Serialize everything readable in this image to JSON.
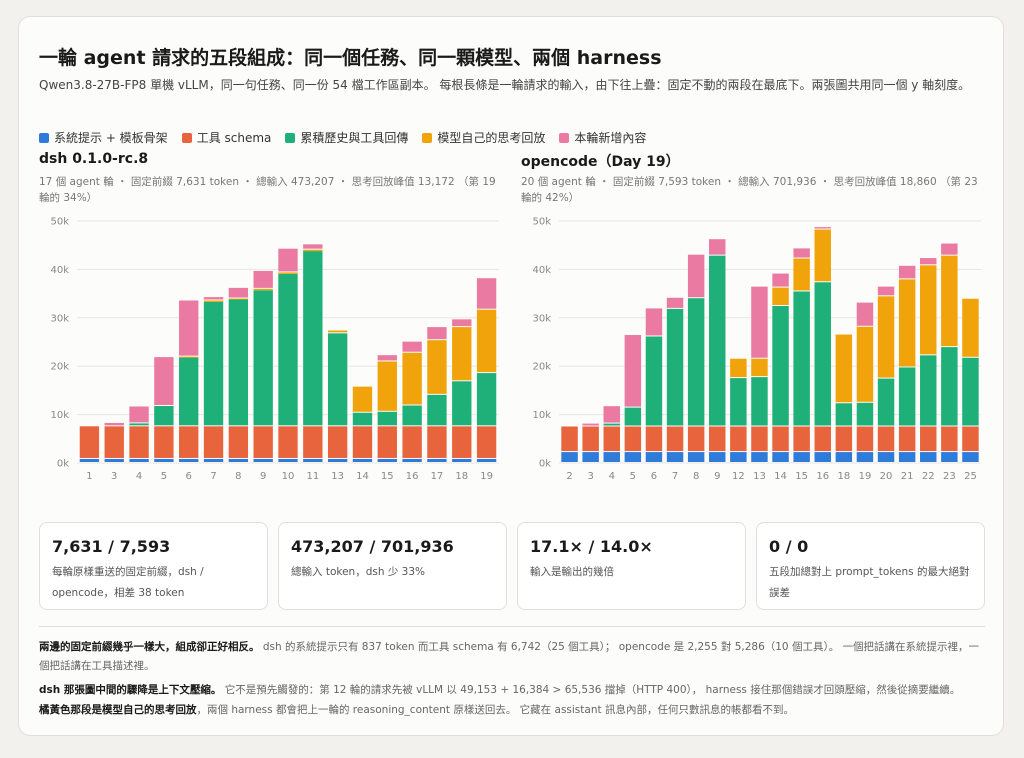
{
  "title": "一輪 agent 請求的五段組成：同一個任務、同一顆模型、兩個 harness",
  "subtitle": "Qwen3.8-27B-FP8 單機 vLLM，同一句任務、同一份 54 檔工作區副本。 每根長條是一輪請求的輸入，由下往上疊：固定不動的兩段在最底下。兩張圖共用同一個 y 軸刻度。",
  "legend": [
    {
      "label": "系統提示 + 模板骨架",
      "color": "#2f7bd9"
    },
    {
      "label": "工具 schema",
      "color": "#e8643c"
    },
    {
      "label": "累積歷史與工具回傳",
      "color": "#1fb07a"
    },
    {
      "label": "模型自己的思考回放",
      "color": "#f0a30a"
    },
    {
      "label": "本輪新增內容",
      "color": "#ea7aa2"
    }
  ],
  "chart_data": [
    {
      "type": "bar",
      "stacked": true,
      "title": "dsh 0.1.0-rc.8",
      "subtitle": "17 個 agent 輪 ・ 固定前綴 7,631 token ・ 總輸入 473,207 ・ 思考回放峰值 13,172 （第 19 輪的 34%）",
      "ylim": [
        0,
        50000
      ],
      "yticks": [
        "0k",
        "10k",
        "20k",
        "30k",
        "40k",
        "50k"
      ],
      "grid": true,
      "categories": [
        "1",
        "3",
        "4",
        "5",
        "6",
        "7",
        "8",
        "9",
        "10",
        "11",
        "13",
        "14",
        "15",
        "16",
        "17",
        "18",
        "19"
      ],
      "series": [
        {
          "name": "系統提示 + 模板骨架",
          "values": [
            837,
            837,
            837,
            837,
            837,
            837,
            837,
            837,
            837,
            837,
            837,
            837,
            837,
            837,
            837,
            837,
            837
          ]
        },
        {
          "name": "工具 schema",
          "values": [
            6742,
            6742,
            6742,
            6742,
            6742,
            6742,
            6742,
            6742,
            6742,
            6742,
            6742,
            6742,
            6742,
            6742,
            6742,
            6742,
            6742
          ]
        },
        {
          "name": "累積歷史與工具回傳",
          "values": [
            0,
            0,
            600,
            4200,
            14200,
            25700,
            26200,
            28100,
            31500,
            36200,
            19200,
            2800,
            3000,
            4300,
            6500,
            9300,
            11000
          ]
        },
        {
          "name": "模型自己的思考回放",
          "values": [
            0,
            0,
            0,
            0,
            200,
            300,
            200,
            300,
            300,
            300,
            600,
            5400,
            10400,
            10900,
            11300,
            11200,
            13100
          ]
        },
        {
          "name": "本輪新增內容",
          "values": [
            0,
            700,
            3500,
            10100,
            11600,
            700,
            2200,
            3700,
            4900,
            1100,
            0,
            0,
            1300,
            2300,
            2700,
            1600,
            6500
          ]
        }
      ]
    },
    {
      "type": "bar",
      "stacked": true,
      "title": "opencode（Day 19）",
      "subtitle": "20 個 agent 輪 ・ 固定前綴 7,593 token ・ 總輸入 701,936 ・ 思考回放峰值 18,860 （第 23 輪的 42%）",
      "ylim": [
        0,
        50000
      ],
      "yticks": [
        "0k",
        "10k",
        "20k",
        "30k",
        "40k",
        "50k"
      ],
      "grid": true,
      "categories": [
        "2",
        "3",
        "4",
        "5",
        "6",
        "7",
        "8",
        "9",
        "12",
        "13",
        "14",
        "15",
        "16",
        "18",
        "19",
        "20",
        "21",
        "22",
        "23",
        "25"
      ],
      "series": [
        {
          "name": "系統提示 + 模板骨架",
          "values": [
            2255,
            2255,
            2255,
            2255,
            2255,
            2255,
            2255,
            2255,
            2255,
            2255,
            2255,
            2255,
            2255,
            2255,
            2255,
            2255,
            2255,
            2255,
            2255,
            2255
          ]
        },
        {
          "name": "工具 schema",
          "values": [
            5286,
            5286,
            5286,
            5286,
            5286,
            5286,
            5286,
            5286,
            5286,
            5286,
            5286,
            5286,
            5286,
            5286,
            5286,
            5286,
            5286,
            5286,
            5286,
            5286
          ]
        },
        {
          "name": "累積歷史與工具回傳",
          "values": [
            0,
            0,
            600,
            3900,
            18600,
            24300,
            26500,
            35300,
            10000,
            10200,
            24900,
            27900,
            29800,
            4800,
            4900,
            9900,
            12200,
            14700,
            16400,
            14200
          ]
        },
        {
          "name": "模型自己的思考回放",
          "values": [
            0,
            0,
            0,
            0,
            0,
            0,
            0,
            0,
            4000,
            3800,
            3800,
            6800,
            10900,
            14200,
            15700,
            17000,
            18200,
            18600,
            18900,
            12200
          ]
        },
        {
          "name": "本輪新增內容",
          "values": [
            0,
            600,
            3600,
            15000,
            5800,
            2300,
            9000,
            3400,
            0,
            14900,
            2900,
            2100,
            500,
            0,
            5000,
            2000,
            2800,
            1500,
            2500,
            0
          ]
        }
      ]
    }
  ],
  "stats": [
    {
      "value": "7,631 / 7,593",
      "label": "每輪原樣重送的固定前綴，dsh / opencode，相差 38 token"
    },
    {
      "value": "473,207 / 701,936",
      "label": "總輸入 token，dsh 少 33%"
    },
    {
      "value": "17.1× / 14.0×",
      "label": "輸入是輸出的幾倍"
    },
    {
      "value": "0 / 0",
      "label": "五段加總對上 prompt_tokens 的最大絕對誤差"
    }
  ],
  "notes": [
    {
      "bold": "兩邊的固定前綴幾乎一樣大，組成卻正好相反。",
      "text": " dsh 的系統提示只有 837 token 而工具 schema 有 6,742（25 個工具）； opencode 是 2,255 對 5,286（10 個工具）。 一個把話講在系統提示裡，一個把話講在工具描述裡。"
    },
    {
      "bold": "dsh 那張圖中間的驟降是上下文壓縮。",
      "text": " 它不是預先觸發的：第 12 輪的請求先被 vLLM 以 49,153 + 16,384 > 65,536 擋掉（HTTP 400）， harness 接住那個錯誤才回頭壓縮，然後從摘要繼續。"
    },
    {
      "bold": "橘黃色那段是模型自己的思考回放",
      "text": "，兩個 harness 都會把上一輪的 reasoning_content 原樣送回去。 它藏在 assistant 訊息內部，任何只數訊息的帳都看不到。"
    }
  ]
}
